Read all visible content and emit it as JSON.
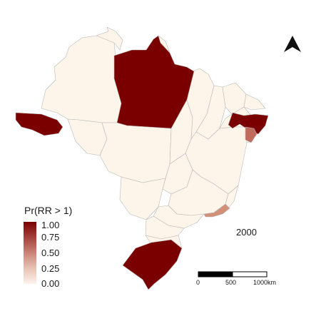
{
  "colors": {
    "high": "#7a0000",
    "mid_high": "#c16a5e",
    "mid": "#d39078",
    "low": "#fdf5ea",
    "border": "#b9b9b9",
    "north_arrow": "#111111"
  },
  "legend": {
    "title": "Pr(RR > 1)",
    "ticks": [
      "1.00",
      "0.75",
      "0.50",
      "0.25",
      "0.00"
    ]
  },
  "year_label": "2000",
  "scale_bar": {
    "labels": [
      "0",
      "500",
      "1000km"
    ]
  },
  "north_arrow": {
    "icon": "north-arrow-icon"
  },
  "regions": [
    {
      "name": "Amazonas",
      "probability": 0.0
    },
    {
      "name": "Pará",
      "probability": 1.0
    },
    {
      "name": "Acre",
      "probability": 1.0
    },
    {
      "name": "Rio Grande do Sul",
      "probability": 1.0
    },
    {
      "name": "Paraíba",
      "probability": 1.0
    },
    {
      "name": "Alagoas",
      "probability": 0.7
    },
    {
      "name": "Rio de Janeiro",
      "probability": 0.55
    }
  ]
}
